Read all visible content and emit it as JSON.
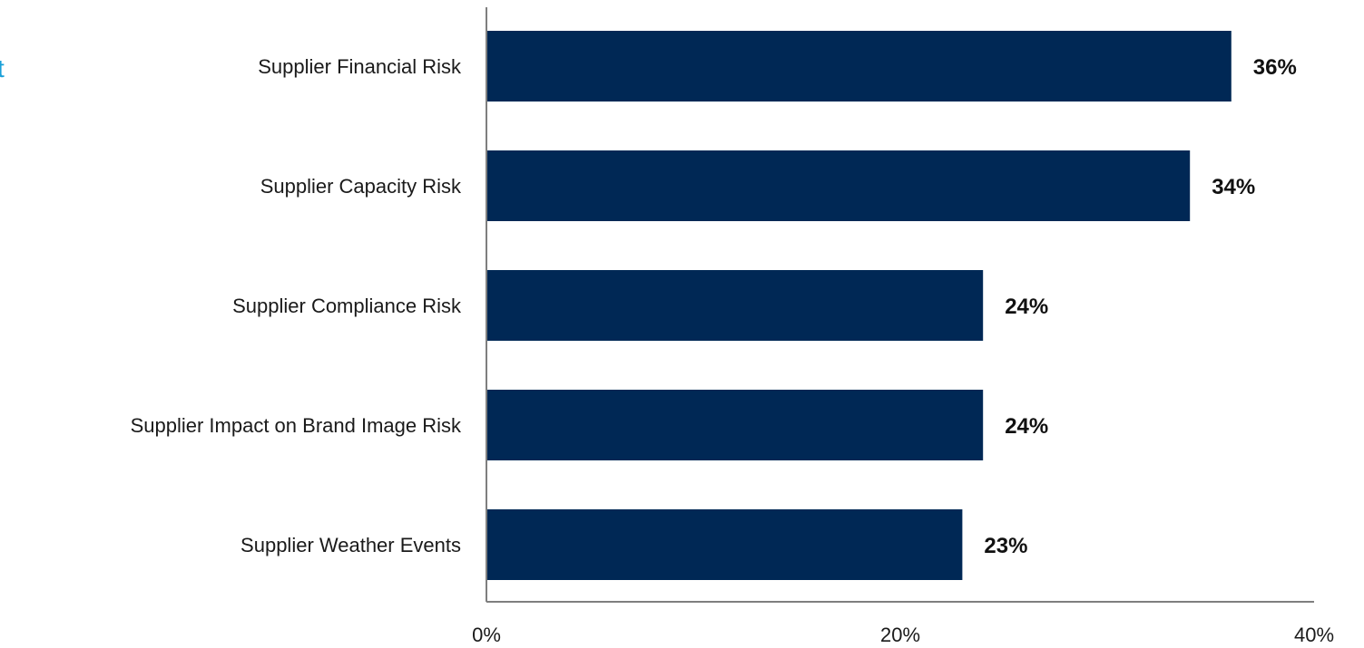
{
  "edge_fragment": "t",
  "colors": {
    "bar": "#002855",
    "axis": "#7f7f7f",
    "accent_text": "#1aa0d8"
  },
  "chart_data": {
    "type": "bar",
    "orientation": "horizontal",
    "categories": [
      "Supplier Financial Risk",
      "Supplier Capacity Risk",
      "Supplier Compliance Risk",
      "Supplier Impact on Brand Image Risk",
      "Supplier Weather Events"
    ],
    "values": [
      36,
      34,
      24,
      24,
      23
    ],
    "value_labels": [
      "36%",
      "34%",
      "24%",
      "24%",
      "23%"
    ],
    "title": "",
    "xlabel": "",
    "ylabel": "",
    "xlim": [
      0,
      40
    ],
    "x_ticks": [
      0,
      20,
      40
    ],
    "x_tick_labels": [
      "0%",
      "20%",
      "40%"
    ],
    "grid": false,
    "legend": "none"
  }
}
